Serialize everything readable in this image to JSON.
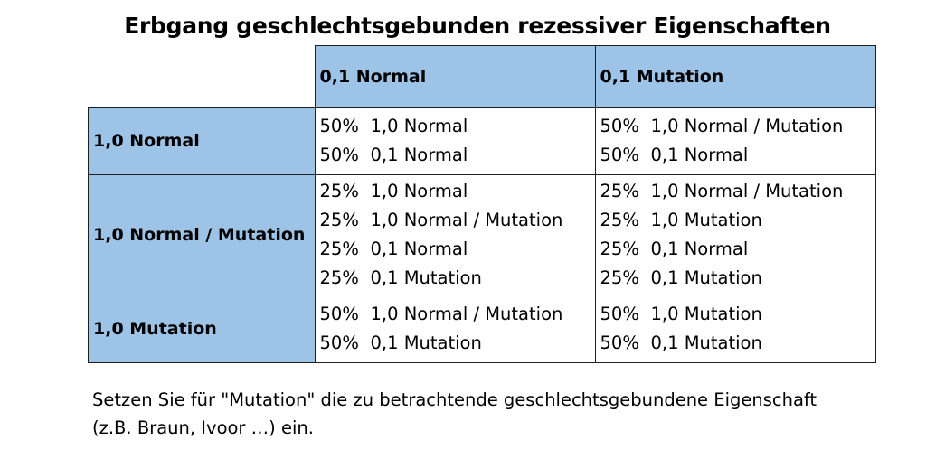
{
  "title": "Erbgang geschlechtsgebunden rezessiver Eigenschaften",
  "columns": [
    "0,1 Normal",
    "0,1 Mutation"
  ],
  "rows": [
    {
      "label": "1,0 Normal",
      "cells": [
        [
          {
            "pct": "50%",
            "text": "1,0 Normal"
          },
          {
            "pct": "50%",
            "text": "0,1 Normal"
          }
        ],
        [
          {
            "pct": "50%",
            "text": "1,0 Normal / Mutation"
          },
          {
            "pct": "50%",
            "text": "0,1 Normal"
          }
        ]
      ]
    },
    {
      "label": "1,0 Normal / Mutation",
      "cells": [
        [
          {
            "pct": "25%",
            "text": "1,0 Normal"
          },
          {
            "pct": "25%",
            "text": "1,0 Normal / Mutation"
          },
          {
            "pct": "25%",
            "text": "0,1 Normal"
          },
          {
            "pct": "25%",
            "text": "0,1 Mutation"
          }
        ],
        [
          {
            "pct": "25%",
            "text": "1,0 Normal / Mutation"
          },
          {
            "pct": "25%",
            "text": "1,0 Mutation"
          },
          {
            "pct": "25%",
            "text": "0,1 Normal"
          },
          {
            "pct": "25%",
            "text": "0,1 Mutation"
          }
        ]
      ]
    },
    {
      "label": "1,0 Mutation",
      "cells": [
        [
          {
            "pct": "50%",
            "text": "1,0 Normal / Mutation"
          },
          {
            "pct": "50%",
            "text": "0,1 Mutation"
          }
        ],
        [
          {
            "pct": "50%",
            "text": "1,0 Mutation"
          },
          {
            "pct": "50%",
            "text": "0,1 Mutation"
          }
        ]
      ]
    }
  ],
  "note": {
    "line1": "Setzen Sie für \"Mutation\" die zu betrachtende geschlechtsgebundene Eigenschaft",
    "line2": "(z.B. Braun, Ivoor …) ein."
  }
}
